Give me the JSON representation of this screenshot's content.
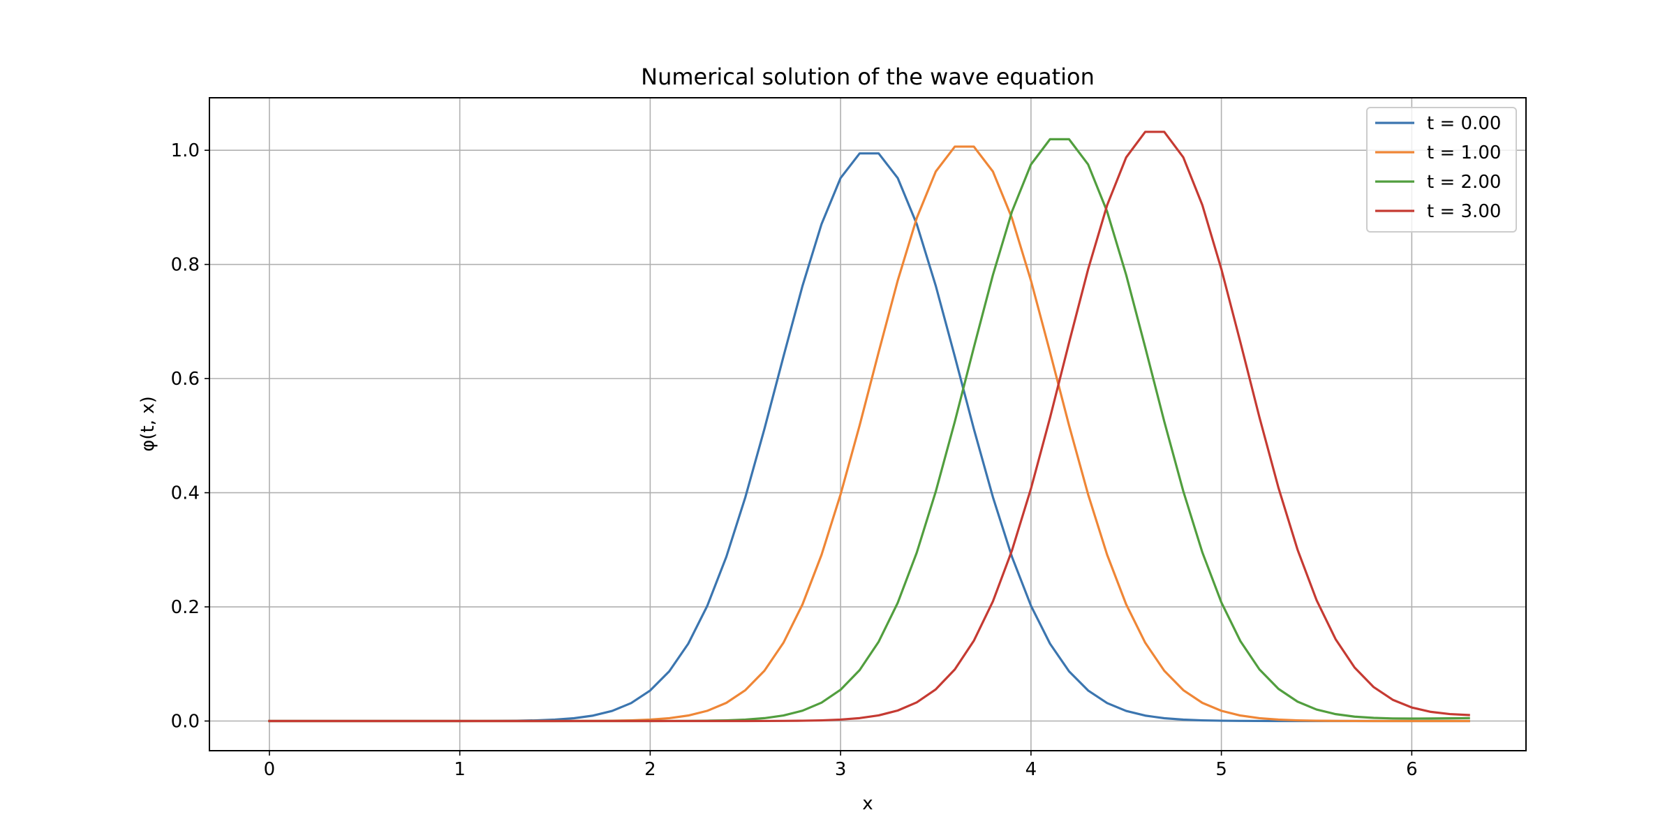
{
  "chart_data": {
    "type": "line",
    "title": "Numerical solution of the wave equation",
    "xlabel": "x",
    "ylabel": "φ(t, x)",
    "xlim": [
      -0.315,
      6.6
    ],
    "ylim": [
      -0.052,
      1.092
    ],
    "xticks": [
      0,
      1,
      2,
      3,
      4,
      5,
      6
    ],
    "xtick_labels": [
      "0",
      "1",
      "2",
      "3",
      "4",
      "5",
      "6"
    ],
    "yticks": [
      0.0,
      0.2,
      0.4,
      0.6,
      0.8,
      1.0
    ],
    "ytick_labels": [
      "0.0",
      "0.2",
      "0.4",
      "0.6",
      "0.8",
      "1.0"
    ],
    "grid": true,
    "legend": "top-right",
    "x_range": {
      "start": 0,
      "stop": 6.3,
      "step": 0.1
    },
    "series": [
      {
        "name": "t = 0.00",
        "color": "#3b75af",
        "center": 3.15,
        "amplitude": 1.0,
        "width": 0.672,
        "tail_boost": 0.0
      },
      {
        "name": "t = 1.00",
        "color": "#ef8636",
        "center": 3.65,
        "amplitude": 1.012,
        "width": 0.672,
        "tail_boost": 0.0
      },
      {
        "name": "t = 2.00",
        "color": "#519e3e",
        "center": 4.15,
        "amplitude": 1.025,
        "width": 0.672,
        "tail_boost": 0.003
      },
      {
        "name": "t = 3.00",
        "color": "#c53a32",
        "center": 4.65,
        "amplitude": 1.038,
        "width": 0.672,
        "tail_boost": 0.008
      }
    ]
  }
}
